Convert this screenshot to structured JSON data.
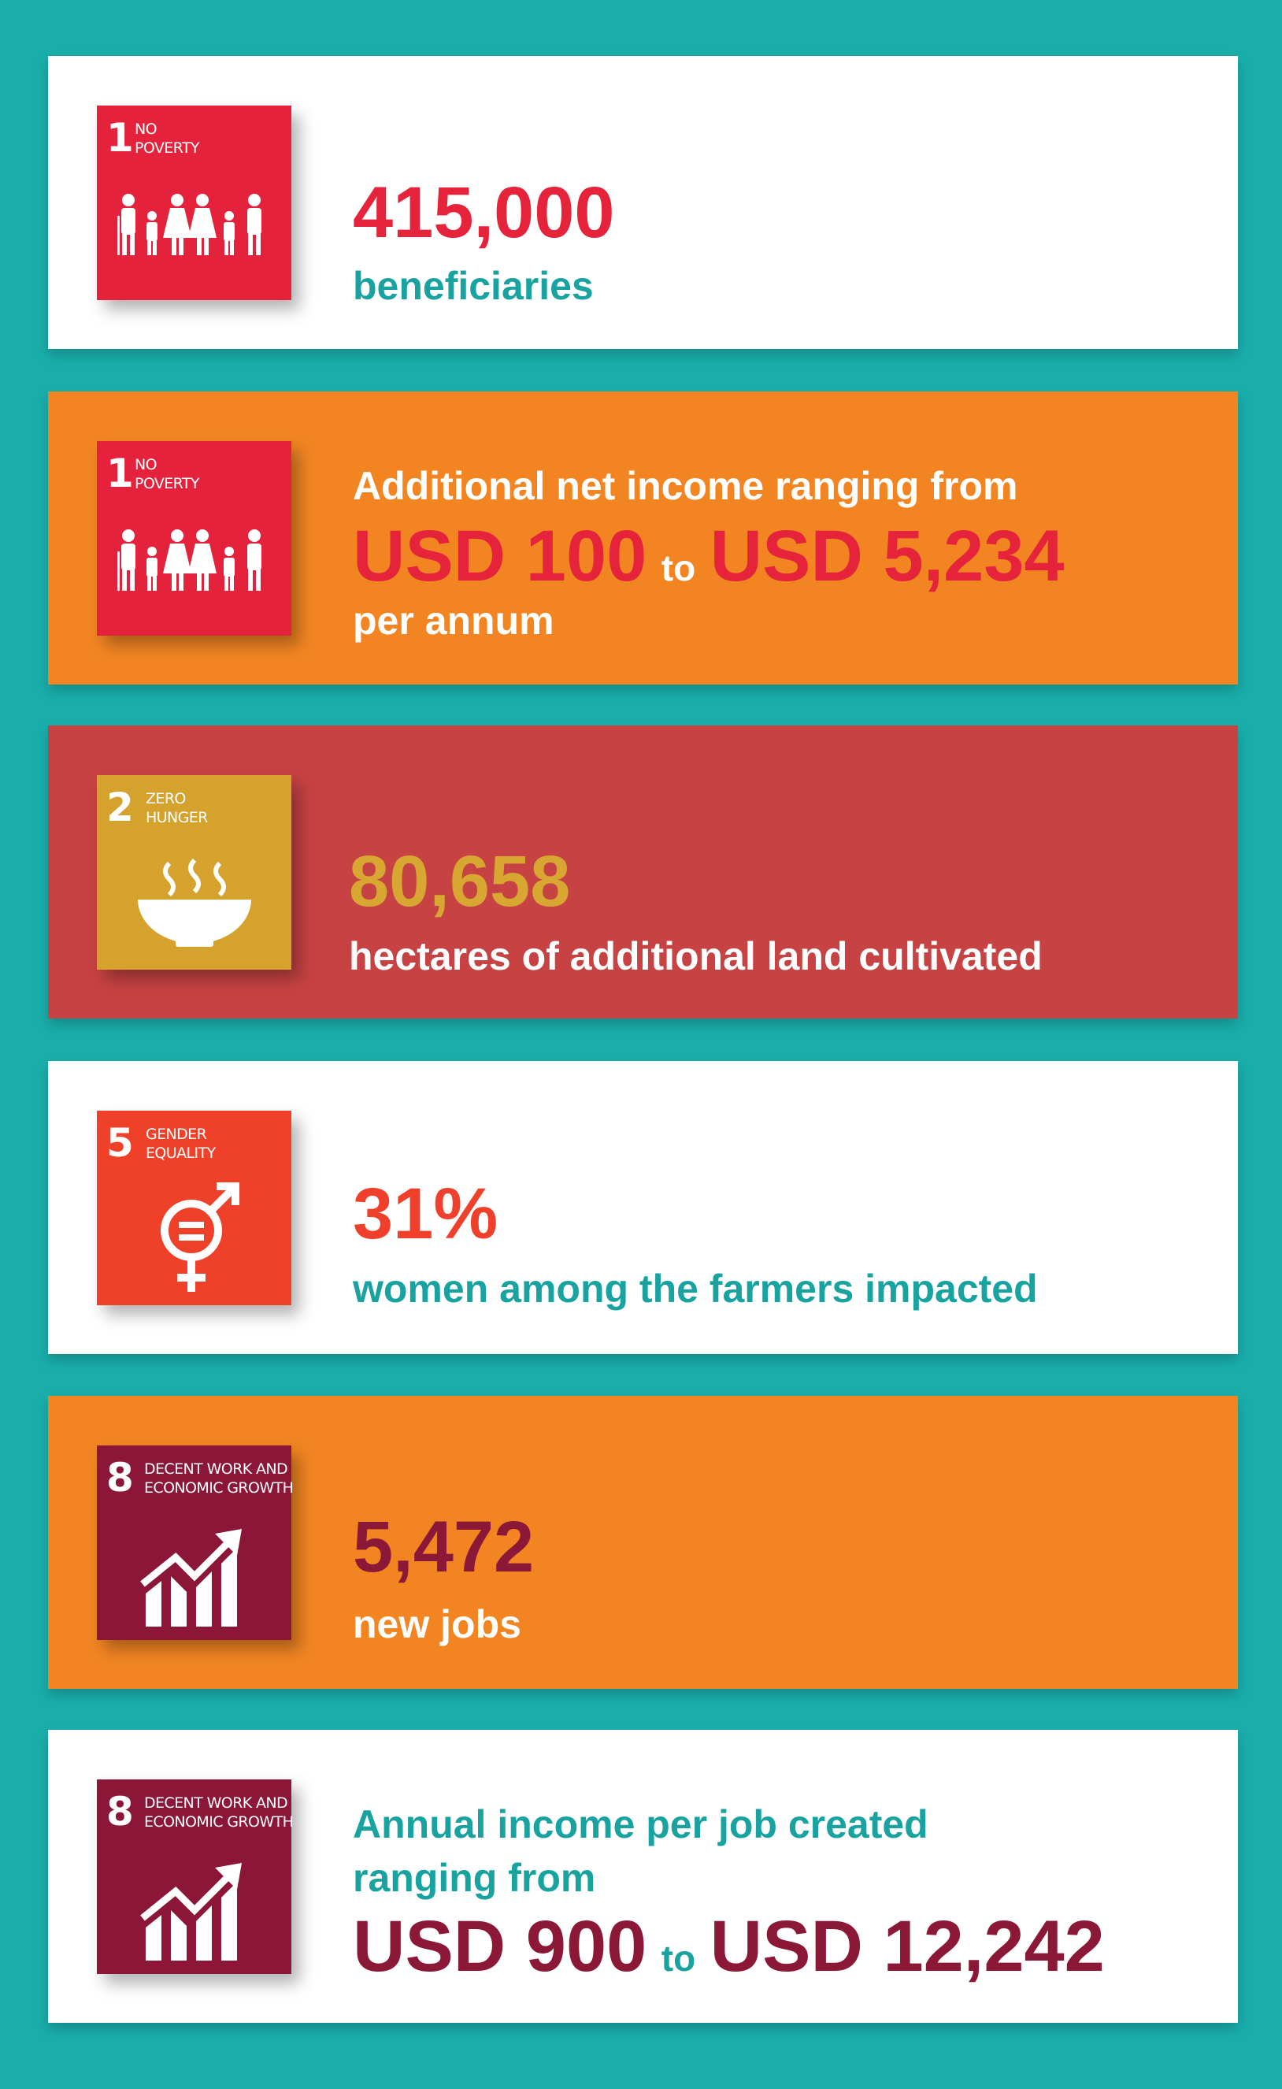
{
  "cards": [
    {
      "goal": {
        "number": "1",
        "name": [
          "NO",
          "POVERTY"
        ]
      },
      "figure": "415,000",
      "caption": "beneficiaries"
    },
    {
      "goal": {
        "number": "1",
        "name": [
          "NO",
          "POVERTY"
        ]
      },
      "lead": [
        "Additional net income ranging from"
      ],
      "low": "USD 100",
      "connector": "to",
      "high": "USD 5,234",
      "trail": "per annum"
    },
    {
      "goal": {
        "number": "2",
        "name": [
          "ZERO",
          "HUNGER"
        ]
      },
      "figure": "80,658",
      "caption": "hectares of additional land cultivated"
    },
    {
      "goal": {
        "number": "5",
        "name": [
          "GENDER",
          "EQUALITY"
        ]
      },
      "figure": "31%",
      "caption": "women among the farmers impacted"
    },
    {
      "goal": {
        "number": "8",
        "name": [
          "DECENT WORK AND",
          "ECONOMIC GROWTH"
        ]
      },
      "figure": "5,472",
      "caption": "new jobs"
    },
    {
      "goal": {
        "number": "8",
        "name": [
          "DECENT WORK AND",
          "ECONOMIC GROWTH"
        ]
      },
      "lead": [
        "Annual income per job created",
        "ranging from"
      ],
      "low": "USD 900",
      "connector": "to",
      "high": "USD 12,242"
    }
  ]
}
